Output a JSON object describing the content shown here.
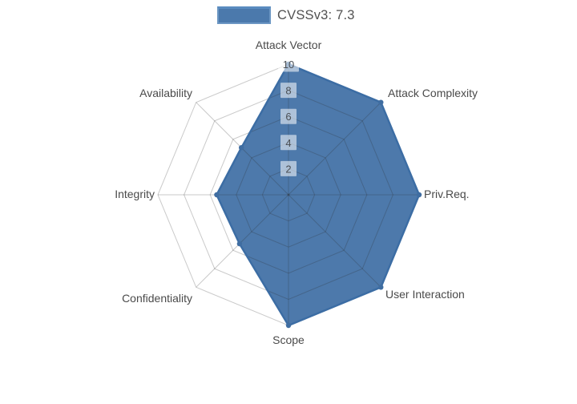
{
  "legend": {
    "label": "CVSSv3: 7.3",
    "swatch_fill": "#4b79ac",
    "swatch_border": "#6b96c3"
  },
  "chart_data": {
    "type": "radar",
    "categories": [
      "Attack Vector",
      "Attack Complexity",
      "Priv.Req.",
      "User Interaction",
      "Scope",
      "Confidentiality",
      "Integrity",
      "Availability"
    ],
    "series": [
      {
        "name": "CVSSv3: 7.3",
        "values": [
          10,
          10,
          10,
          10,
          10,
          5.3,
          5.5,
          5.1
        ]
      }
    ],
    "radial_ticks": [
      2,
      4,
      6,
      8,
      10
    ],
    "range": [
      0,
      10
    ],
    "grid": true,
    "grid_shape": "polygon",
    "legend_position": "top-center",
    "colors": {
      "fill": "#4d79ab",
      "line": "#3c6da4",
      "marker": "#3f6da1",
      "grid": "rgba(45,45,45,0.25)",
      "tick_label": "#4a4f55",
      "tick_box_bg": "rgba(255,255,255,0.55)",
      "axis_label": "#4a4a4a"
    }
  }
}
